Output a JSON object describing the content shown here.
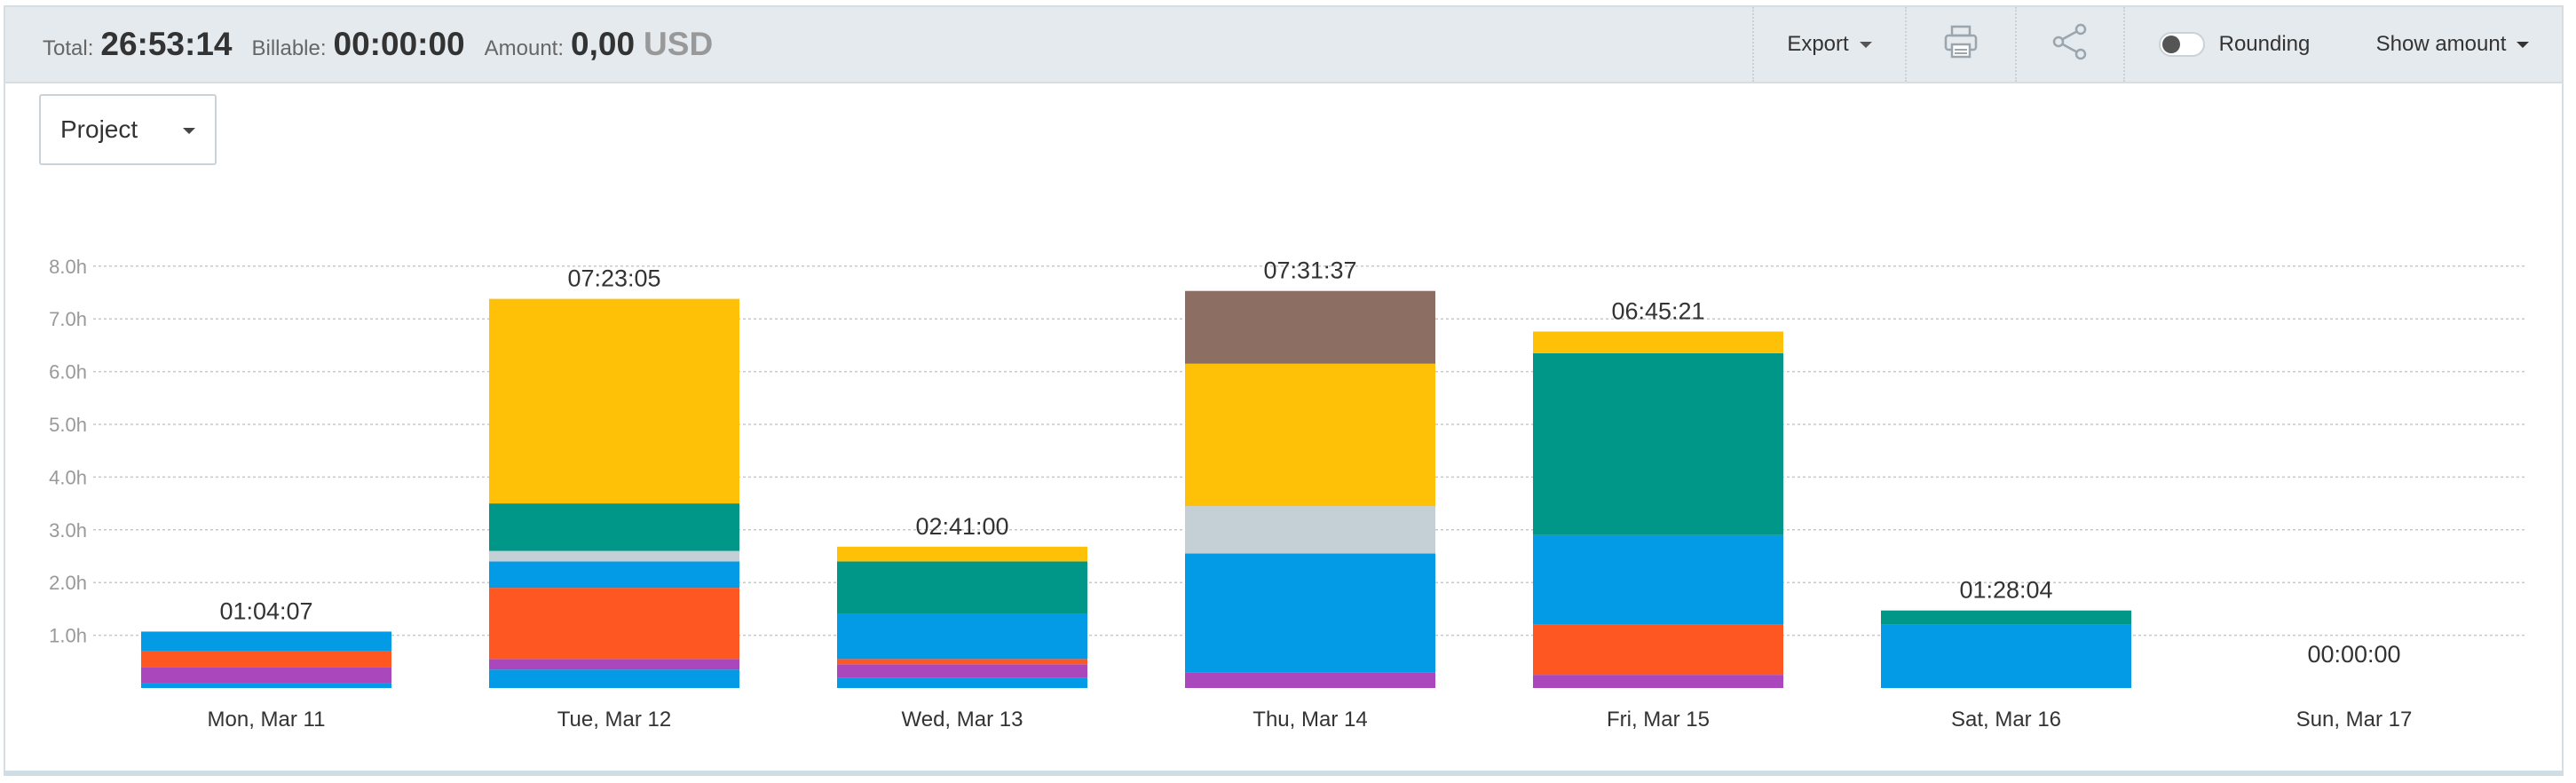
{
  "summary": {
    "total_label": "Total:",
    "total_value": "26:53:14",
    "billable_label": "Billable:",
    "billable_value": "00:00:00",
    "amount_label": "Amount:",
    "amount_value": "0,00",
    "amount_currency": "USD"
  },
  "toolbar": {
    "export_label": "Export",
    "print_icon": "printer-icon",
    "share_icon": "share-icon",
    "rounding_label": "Rounding",
    "rounding_on": false,
    "show_amount_label": "Show amount"
  },
  "group_by": {
    "selected": "Project"
  },
  "colors": {
    "blue": "#039be5",
    "orange": "#ff5722",
    "purple": "#ab47bc",
    "teal": "#009688",
    "yellow": "#ffc107",
    "gray": "#c5cfd6",
    "brown": "#8d6e63"
  },
  "chart_data": {
    "type": "bar",
    "stacked": true,
    "ylabel": "hours",
    "ylim": [
      0,
      8
    ],
    "yticks": [
      "1.0h",
      "2.0h",
      "3.0h",
      "4.0h",
      "5.0h",
      "6.0h",
      "7.0h",
      "8.0h"
    ],
    "grid": true,
    "categories": [
      "Mon, Mar 11",
      "Tue, Mar 12",
      "Wed, Mar 13",
      "Thu, Mar 14",
      "Fri, Mar 15",
      "Sat, Mar 16",
      "Sun, Mar 17"
    ],
    "totals": [
      "01:04:07",
      "07:23:05",
      "02:41:00",
      "07:31:37",
      "06:45:21",
      "01:28:04",
      "00:00:00"
    ],
    "bars": [
      [
        {
          "color": "blue",
          "value": 0.1
        },
        {
          "color": "purple",
          "value": 0.3
        },
        {
          "color": "orange",
          "value": 0.3
        },
        {
          "color": "blue",
          "value": 0.37
        }
      ],
      [
        {
          "color": "blue",
          "value": 0.35
        },
        {
          "color": "purple",
          "value": 0.2
        },
        {
          "color": "orange",
          "value": 1.35
        },
        {
          "color": "blue",
          "value": 0.5
        },
        {
          "color": "gray",
          "value": 0.2
        },
        {
          "color": "teal",
          "value": 0.9
        },
        {
          "color": "yellow",
          "value": 3.88
        }
      ],
      [
        {
          "color": "blue",
          "value": 0.2
        },
        {
          "color": "purple",
          "value": 0.25
        },
        {
          "color": "orange",
          "value": 0.1
        },
        {
          "color": "blue",
          "value": 0.85
        },
        {
          "color": "teal",
          "value": 1.0
        },
        {
          "color": "yellow",
          "value": 0.28
        }
      ],
      [
        {
          "color": "purple",
          "value": 0.3
        },
        {
          "color": "blue",
          "value": 2.25
        },
        {
          "color": "gray",
          "value": 0.9
        },
        {
          "color": "yellow",
          "value": 2.7
        },
        {
          "color": "brown",
          "value": 1.38
        }
      ],
      [
        {
          "color": "purple",
          "value": 0.25
        },
        {
          "color": "orange",
          "value": 0.95
        },
        {
          "color": "blue",
          "value": 1.7
        },
        {
          "color": "teal",
          "value": 3.45
        },
        {
          "color": "yellow",
          "value": 0.41
        }
      ],
      [
        {
          "color": "blue",
          "value": 1.2
        },
        {
          "color": "teal",
          "value": 0.27
        }
      ],
      []
    ]
  }
}
